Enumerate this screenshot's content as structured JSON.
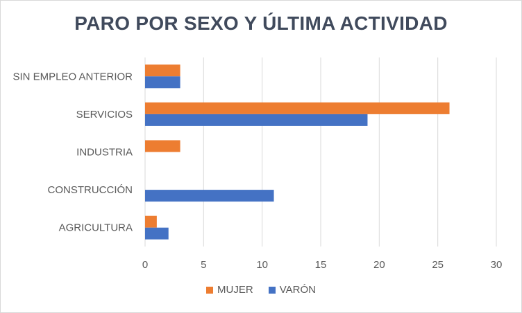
{
  "chart_data": {
    "type": "bar",
    "orientation": "horizontal",
    "title": "PARO POR SEXO Y ÚLTIMA ACTIVIDAD",
    "categories": [
      "SIN EMPLEO ANTERIOR",
      "SERVICIOS",
      "INDUSTRIA",
      "CONSTRUCCIÓN",
      "AGRICULTURA"
    ],
    "series": [
      {
        "name": "MUJER",
        "color": "#ed7d31",
        "values": [
          3,
          26,
          3,
          0,
          1
        ]
      },
      {
        "name": "VARÓN",
        "color": "#4472c4",
        "values": [
          3,
          19,
          0,
          11,
          2
        ]
      }
    ],
    "xlim": [
      0,
      30
    ],
    "xticks": [
      "0",
      "5",
      "10",
      "15",
      "20",
      "25",
      "30"
    ],
    "grid": true,
    "legend_position": "bottom"
  }
}
